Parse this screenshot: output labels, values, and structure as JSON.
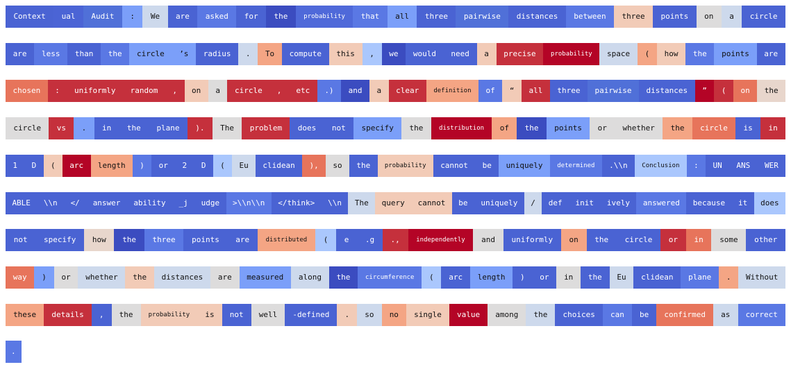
{
  "rows": [
    [
      {
        "text": "Context",
        "color": "#4a63d3"
      },
      {
        "text": "ual",
        "color": "#4b64d5"
      },
      {
        "text": "Audit",
        "color": "#5070d8"
      },
      {
        "text": ":",
        "color": "#7b9ff9"
      },
      {
        "text": "We",
        "color": "#cdd9ec"
      },
      {
        "text": "are",
        "color": "#4a63d3"
      },
      {
        "text": "asked",
        "color": "#5a78e4"
      },
      {
        "text": "for",
        "color": "#4a63d3"
      },
      {
        "text": "the",
        "color": "#3b4cc0"
      },
      {
        "text": "probability",
        "color": "#4f69d9"
      },
      {
        "text": "that",
        "color": "#5a78e4"
      },
      {
        "text": "all",
        "color": "#7b9ff9"
      },
      {
        "text": "three",
        "color": "#4a63d3"
      },
      {
        "text": "pairwise",
        "color": "#5070d8"
      },
      {
        "text": "distances",
        "color": "#4a63d3"
      },
      {
        "text": "between",
        "color": "#5a78e4"
      },
      {
        "text": "three",
        "color": "#f2cbb7"
      },
      {
        "text": "points",
        "color": "#4a63d3"
      },
      {
        "text": "on",
        "color": "#dddcdc"
      },
      {
        "text": "a",
        "color": "#cdd9ec"
      },
      {
        "text": "circle",
        "color": "#4a63d3"
      }
    ],
    [
      {
        "text": "are",
        "color": "#4a63d3"
      },
      {
        "text": "less",
        "color": "#5a78e4"
      },
      {
        "text": "than",
        "color": "#4a63d3"
      },
      {
        "text": "the",
        "color": "#5a78e4"
      },
      {
        "text": "circle",
        "color": "#7b9ff9"
      },
      {
        "text": "’s",
        "color": "#7b9ff9"
      },
      {
        "text": "radius",
        "color": "#4a63d3"
      },
      {
        "text": ".",
        "color": "#cdd9ec"
      },
      {
        "text": "To",
        "color": "#f4a584"
      },
      {
        "text": "compute",
        "color": "#4a63d3"
      },
      {
        "text": "this",
        "color": "#f2cbb7"
      },
      {
        "text": ",",
        "color": "#aac7fd"
      },
      {
        "text": "we",
        "color": "#3b4cc0"
      },
      {
        "text": "would",
        "color": "#4a63d3"
      },
      {
        "text": "need",
        "color": "#4a63d3"
      },
      {
        "text": "a",
        "color": "#f2cbb7"
      },
      {
        "text": "precise",
        "color": "#c5303c"
      },
      {
        "text": "probability",
        "color": "#b40426"
      },
      {
        "text": "space",
        "color": "#cdd9ec"
      },
      {
        "text": "(",
        "color": "#f4a584"
      },
      {
        "text": "how",
        "color": "#f2cbb7"
      },
      {
        "text": "the",
        "color": "#5a78e4"
      },
      {
        "text": "points",
        "color": "#7b9ff9"
      },
      {
        "text": "are",
        "color": "#4a63d3"
      }
    ],
    [
      {
        "text": "chosen",
        "color": "#e7745b"
      },
      {
        "text": ":",
        "color": "#c5303c"
      },
      {
        "text": "uniformly",
        "color": "#c5303c"
      },
      {
        "text": "random",
        "color": "#c5303c"
      },
      {
        "text": ",",
        "color": "#c5303c"
      },
      {
        "text": "on",
        "color": "#f2cbb7"
      },
      {
        "text": "a",
        "color": "#dddcdc"
      },
      {
        "text": "circle",
        "color": "#c5303c"
      },
      {
        "text": ",",
        "color": "#c5303c"
      },
      {
        "text": "etc",
        "color": "#c5303c"
      },
      {
        "text": ".)",
        "color": "#5a78e4"
      },
      {
        "text": "and",
        "color": "#3b4cc0"
      },
      {
        "text": "a",
        "color": "#f2cbb7"
      },
      {
        "text": "clear",
        "color": "#c5303c"
      },
      {
        "text": "definition",
        "color": "#f4a584"
      },
      {
        "text": "of",
        "color": "#5a78e4"
      },
      {
        "text": "“",
        "color": "#f2cbb7"
      },
      {
        "text": "all",
        "color": "#c5303c"
      },
      {
        "text": "three",
        "color": "#4a63d3"
      },
      {
        "text": "pairwise",
        "color": "#5070d8"
      },
      {
        "text": "distances",
        "color": "#4a63d3"
      },
      {
        "text": "”",
        "color": "#b40426"
      },
      {
        "text": "(",
        "color": "#c5303c"
      },
      {
        "text": "on",
        "color": "#e7745b"
      },
      {
        "text": "the",
        "color": "#e8d6cc"
      }
    ],
    [
      {
        "text": "circle",
        "color": "#dddcdc"
      },
      {
        "text": "vs",
        "color": "#c5303c"
      },
      {
        "text": ".",
        "color": "#7b9ff9"
      },
      {
        "text": "in",
        "color": "#4a63d3"
      },
      {
        "text": "the",
        "color": "#4a63d3"
      },
      {
        "text": "plane",
        "color": "#4a63d3"
      },
      {
        "text": ").",
        "color": "#c5303c"
      },
      {
        "text": "The",
        "color": "#dddcdc"
      },
      {
        "text": "problem",
        "color": "#c5303c"
      },
      {
        "text": "does",
        "color": "#4a63d3"
      },
      {
        "text": "not",
        "color": "#4a63d3"
      },
      {
        "text": "specify",
        "color": "#7b9ff9"
      },
      {
        "text": "the",
        "color": "#dddcdc"
      },
      {
        "text": "distribution",
        "color": "#b40426"
      },
      {
        "text": "of",
        "color": "#f4a584"
      },
      {
        "text": "the",
        "color": "#3b4cc0"
      },
      {
        "text": "points",
        "color": "#7b9ff9"
      },
      {
        "text": "or",
        "color": "#dddcdc"
      },
      {
        "text": "whether",
        "color": "#dddcdc"
      },
      {
        "text": "the",
        "color": "#f4a584"
      },
      {
        "text": "circle",
        "color": "#e7745b"
      },
      {
        "text": "is",
        "color": "#4a63d3"
      },
      {
        "text": "in",
        "color": "#c5303c"
      }
    ],
    [
      {
        "text": "1",
        "color": "#4a63d3"
      },
      {
        "text": "D",
        "color": "#4a63d3"
      },
      {
        "text": "(",
        "color": "#f2cbb7"
      },
      {
        "text": "arc",
        "color": "#b40426"
      },
      {
        "text": "length",
        "color": "#f4a584"
      },
      {
        "text": ")",
        "color": "#5a78e4"
      },
      {
        "text": "or",
        "color": "#4a63d3"
      },
      {
        "text": "2",
        "color": "#4a63d3"
      },
      {
        "text": "D",
        "color": "#4a63d3"
      },
      {
        "text": "(",
        "color": "#aac7fd"
      },
      {
        "text": "Eu",
        "color": "#cdd9ec"
      },
      {
        "text": "clidean",
        "color": "#4a63d3"
      },
      {
        "text": "),",
        "color": "#e7745b"
      },
      {
        "text": "so",
        "color": "#dddcdc"
      },
      {
        "text": "the",
        "color": "#4a63d3"
      },
      {
        "text": "probability",
        "color": "#f2cbb7"
      },
      {
        "text": "cannot",
        "color": "#4a63d3"
      },
      {
        "text": "be",
        "color": "#4a63d3"
      },
      {
        "text": "uniquely",
        "color": "#7b9ff9"
      },
      {
        "text": "determined",
        "color": "#5a78e4"
      },
      {
        "text": ".\\\\n",
        "color": "#4a63d3"
      },
      {
        "text": "Conclusion",
        "color": "#aac7fd"
      },
      {
        "text": ":",
        "color": "#5a78e4"
      },
      {
        "text": "UN",
        "color": "#4a63d3"
      },
      {
        "text": "ANS",
        "color": "#4a63d3"
      },
      {
        "text": "WER",
        "color": "#4a63d3"
      }
    ],
    [
      {
        "text": "ABLE",
        "color": "#4a63d3"
      },
      {
        "text": "\\\\n",
        "color": "#4a63d3"
      },
      {
        "text": "</",
        "color": "#4a63d3"
      },
      {
        "text": "answer",
        "color": "#4a63d3"
      },
      {
        "text": "ability",
        "color": "#4a63d3"
      },
      {
        "text": "_j",
        "color": "#4a63d3"
      },
      {
        "text": "udge",
        "color": "#4a63d3"
      },
      {
        "text": ">\\\\n\\\\n",
        "color": "#5a78e4"
      },
      {
        "text": "</think>",
        "color": "#4a63d3"
      },
      {
        "text": "\\\\n",
        "color": "#4a63d3"
      },
      {
        "text": "The",
        "color": "#cdd9ec"
      },
      {
        "text": "query",
        "color": "#f2cbb7"
      },
      {
        "text": "cannot",
        "color": "#f2cbb7"
      },
      {
        "text": "be",
        "color": "#4a63d3"
      },
      {
        "text": "uniquely",
        "color": "#4a63d3"
      },
      {
        "text": "/",
        "color": "#cdd9ec"
      },
      {
        "text": "def",
        "color": "#4a63d3"
      },
      {
        "text": "init",
        "color": "#4a63d3"
      },
      {
        "text": "ively",
        "color": "#4a63d3"
      },
      {
        "text": "answered",
        "color": "#5a78e4"
      },
      {
        "text": "because",
        "color": "#4a63d3"
      },
      {
        "text": "it",
        "color": "#4a63d3"
      },
      {
        "text": "does",
        "color": "#aac7fd"
      }
    ],
    [
      {
        "text": "not",
        "color": "#4a63d3"
      },
      {
        "text": "specify",
        "color": "#4a63d3"
      },
      {
        "text": "how",
        "color": "#e8d6cc"
      },
      {
        "text": "the",
        "color": "#3b4cc0"
      },
      {
        "text": "three",
        "color": "#5a78e4"
      },
      {
        "text": "points",
        "color": "#4a63d3"
      },
      {
        "text": "are",
        "color": "#4a63d3"
      },
      {
        "text": "distributed",
        "color": "#f4a584"
      },
      {
        "text": "(",
        "color": "#aac7fd"
      },
      {
        "text": "e",
        "color": "#4a63d3"
      },
      {
        "text": ".g",
        "color": "#4a63d3"
      },
      {
        "text": ".,",
        "color": "#c5303c"
      },
      {
        "text": "independently",
        "color": "#b40426"
      },
      {
        "text": "and",
        "color": "#dddcdc"
      },
      {
        "text": "uniformly",
        "color": "#4a63d3"
      },
      {
        "text": "on",
        "color": "#f4a584"
      },
      {
        "text": "the",
        "color": "#4a63d3"
      },
      {
        "text": "circle",
        "color": "#4a63d3"
      },
      {
        "text": "or",
        "color": "#c5303c"
      },
      {
        "text": "in",
        "color": "#e7745b"
      },
      {
        "text": "some",
        "color": "#dddcdc"
      },
      {
        "text": "other",
        "color": "#4a63d3"
      }
    ],
    [
      {
        "text": "way",
        "color": "#e7745b"
      },
      {
        "text": ")",
        "color": "#7b9ff9"
      },
      {
        "text": "or",
        "color": "#dddcdc"
      },
      {
        "text": "whether",
        "color": "#cdd9ec"
      },
      {
        "text": "the",
        "color": "#f2cbb7"
      },
      {
        "text": "distances",
        "color": "#cdd9ec"
      },
      {
        "text": "are",
        "color": "#dddcdc"
      },
      {
        "text": "measured",
        "color": "#7b9ff9"
      },
      {
        "text": "along",
        "color": "#cdd9ec"
      },
      {
        "text": "the",
        "color": "#3b4cc0"
      },
      {
        "text": "circumference",
        "color": "#5a78e4"
      },
      {
        "text": "(",
        "color": "#aac7fd"
      },
      {
        "text": "arc",
        "color": "#4a63d3"
      },
      {
        "text": "length",
        "color": "#7b9ff9"
      },
      {
        "text": ")",
        "color": "#4a63d3"
      },
      {
        "text": "or",
        "color": "#4a63d3"
      },
      {
        "text": "in",
        "color": "#dddcdc"
      },
      {
        "text": "the",
        "color": "#4a63d3"
      },
      {
        "text": "Eu",
        "color": "#cdd9ec"
      },
      {
        "text": "clidean",
        "color": "#4a63d3"
      },
      {
        "text": "plane",
        "color": "#5a78e4"
      },
      {
        "text": ".",
        "color": "#f4a584"
      },
      {
        "text": "Without",
        "color": "#cdd9ec"
      }
    ],
    [
      {
        "text": "these",
        "color": "#f4a584"
      },
      {
        "text": "details",
        "color": "#c5303c"
      },
      {
        "text": ",",
        "color": "#4a63d3"
      },
      {
        "text": "the",
        "color": "#dddcdc"
      },
      {
        "text": "probability",
        "color": "#f2cbb7"
      },
      {
        "text": "is",
        "color": "#f2cbb7"
      },
      {
        "text": "not",
        "color": "#4a63d3"
      },
      {
        "text": "well",
        "color": "#dddcdc"
      },
      {
        "text": "-defined",
        "color": "#4a63d3"
      },
      {
        "text": ".",
        "color": "#f2cbb7"
      },
      {
        "text": "so",
        "color": "#cdd9ec"
      },
      {
        "text": "no",
        "color": "#f4a584"
      },
      {
        "text": "single",
        "color": "#f2cbb7"
      },
      {
        "text": "value",
        "color": "#b40426"
      },
      {
        "text": "among",
        "color": "#dddcdc"
      },
      {
        "text": "the",
        "color": "#cdd9ec"
      },
      {
        "text": "choices",
        "color": "#4a63d3"
      },
      {
        "text": "can",
        "color": "#5a78e4"
      },
      {
        "text": "be",
        "color": "#4a63d3"
      },
      {
        "text": "confirmed",
        "color": "#e7745b"
      },
      {
        "text": "as",
        "color": "#cdd9ec"
      },
      {
        "text": "correct",
        "color": "#5a78e4"
      }
    ],
    [
      {
        "text": ".",
        "color": "#5a78e4"
      }
    ]
  ]
}
